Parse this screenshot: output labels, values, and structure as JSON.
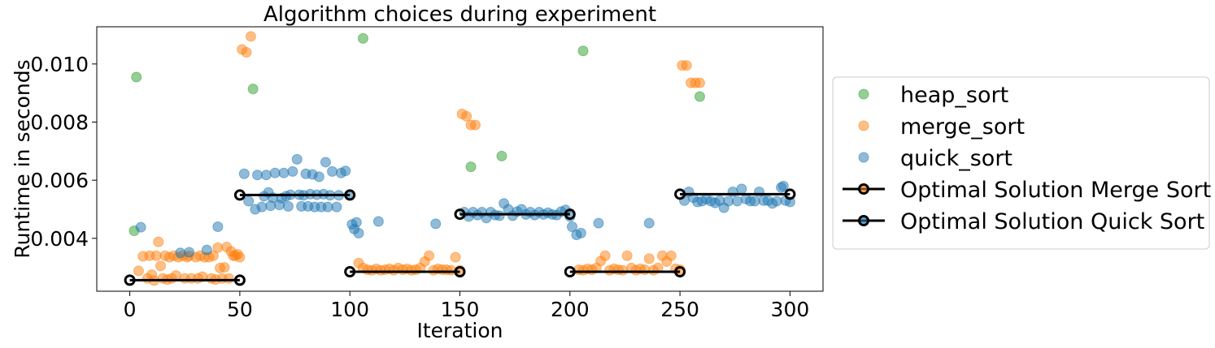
{
  "chart_data": {
    "type": "scatter",
    "title": "Algorithm choices during experiment",
    "xlabel": "Iteration",
    "ylabel": "Runtime in seconds",
    "xlim": [
      -15,
      315
    ],
    "ylim": [
      0.00218,
      0.01128
    ],
    "xticks": [
      0,
      50,
      100,
      150,
      200,
      250,
      300
    ],
    "yticks": [
      0.004,
      0.006,
      0.008,
      0.01
    ],
    "ytick_labels": [
      "0.004",
      "0.006",
      "0.008",
      "0.010"
    ],
    "grid": false,
    "legend_position": "right",
    "series": [
      {
        "name": "heap_sort",
        "kind": "scatter",
        "color": "#2ca02c",
        "points": [
          [
            2,
            0.00426
          ],
          [
            3,
            0.00955
          ],
          [
            56,
            0.00914
          ],
          [
            106,
            0.01088
          ],
          [
            155,
            0.00646
          ],
          [
            169,
            0.00683
          ],
          [
            206,
            0.01045
          ],
          [
            259,
            0.00888
          ]
        ]
      },
      {
        "name": "merge_sort",
        "kind": "scatter",
        "color": "#ff7f0e",
        "points": [
          [
            4,
            0.00288
          ],
          [
            6,
            0.00338
          ],
          [
            8,
            0.00262
          ],
          [
            9,
            0.0034
          ],
          [
            10,
            0.00275
          ],
          [
            11,
            0.00255
          ],
          [
            12,
            0.0034
          ],
          [
            13,
            0.00388
          ],
          [
            14,
            0.00305
          ],
          [
            15,
            0.00262
          ],
          [
            16,
            0.0034
          ],
          [
            17,
            0.00258
          ],
          [
            18,
            0.00335
          ],
          [
            19,
            0.00262
          ],
          [
            20,
            0.0034
          ],
          [
            21,
            0.00272
          ],
          [
            22,
            0.00335
          ],
          [
            24,
            0.0034
          ],
          [
            25,
            0.00262
          ],
          [
            26,
            0.00335
          ],
          [
            27,
            0.0034
          ],
          [
            28,
            0.00262
          ],
          [
            30,
            0.00335
          ],
          [
            31,
            0.00262
          ],
          [
            32,
            0.0034
          ],
          [
            33,
            0.00268
          ],
          [
            34,
            0.00335
          ],
          [
            36,
            0.00335
          ],
          [
            37,
            0.00262
          ],
          [
            38,
            0.0034
          ],
          [
            39,
            0.00258
          ],
          [
            40,
            0.00368
          ],
          [
            41,
            0.00298
          ],
          [
            42,
            0.00262
          ],
          [
            43,
            0.003
          ],
          [
            44,
            0.0037
          ],
          [
            45,
            0.00262
          ],
          [
            46,
            0.00355
          ],
          [
            47,
            0.0034
          ],
          [
            48,
            0.0034
          ],
          [
            49,
            0.00345
          ],
          [
            50,
            0.00335
          ],
          [
            51,
            0.0105
          ],
          [
            53,
            0.0104
          ],
          [
            55,
            0.01095
          ],
          [
            104,
            0.00315
          ],
          [
            106,
            0.00298
          ],
          [
            108,
            0.00292
          ],
          [
            110,
            0.0029
          ],
          [
            112,
            0.00295
          ],
          [
            114,
            0.0029
          ],
          [
            116,
            0.00292
          ],
          [
            118,
            0.00295
          ],
          [
            120,
            0.0029
          ],
          [
            122,
            0.00298
          ],
          [
            124,
            0.00292
          ],
          [
            126,
            0.00295
          ],
          [
            128,
            0.0029
          ],
          [
            130,
            0.00292
          ],
          [
            132,
            0.00298
          ],
          [
            134,
            0.0032
          ],
          [
            136,
            0.0034
          ],
          [
            138,
            0.0029
          ],
          [
            140,
            0.00295
          ],
          [
            142,
            0.00292
          ],
          [
            144,
            0.00292
          ],
          [
            146,
            0.0029
          ],
          [
            148,
            0.00335
          ],
          [
            150,
            0.0029
          ],
          [
            151,
            0.00828
          ],
          [
            153,
            0.0082
          ],
          [
            155,
            0.0079
          ],
          [
            157,
            0.0079
          ],
          [
            204,
            0.00292
          ],
          [
            206,
            0.0029
          ],
          [
            208,
            0.00295
          ],
          [
            210,
            0.00292
          ],
          [
            212,
            0.00298
          ],
          [
            214,
            0.00322
          ],
          [
            216,
            0.0034
          ],
          [
            218,
            0.0029
          ],
          [
            220,
            0.00295
          ],
          [
            222,
            0.00292
          ],
          [
            224,
            0.0029
          ],
          [
            226,
            0.0034
          ],
          [
            228,
            0.00298
          ],
          [
            230,
            0.0029
          ],
          [
            232,
            0.00295
          ],
          [
            234,
            0.00292
          ],
          [
            236,
            0.0033
          ],
          [
            238,
            0.0029
          ],
          [
            240,
            0.00298
          ],
          [
            242,
            0.0034
          ],
          [
            244,
            0.0032
          ],
          [
            246,
            0.0034
          ],
          [
            248,
            0.00295
          ],
          [
            250,
            0.00292
          ],
          [
            251,
            0.00995
          ],
          [
            253,
            0.00995
          ],
          [
            255,
            0.00935
          ],
          [
            257,
            0.00935
          ],
          [
            259,
            0.00935
          ]
        ]
      },
      {
        "name": "quick_sort",
        "kind": "scatter",
        "color": "#1f77b4",
        "points": [
          [
            5,
            0.00438
          ],
          [
            23,
            0.0035
          ],
          [
            27,
            0.00352
          ],
          [
            35,
            0.0036
          ],
          [
            40,
            0.0044
          ],
          [
            52,
            0.00622
          ],
          [
            54,
            0.00528
          ],
          [
            57,
            0.005
          ],
          [
            58,
            0.00618
          ],
          [
            60,
            0.00508
          ],
          [
            61,
            0.00545
          ],
          [
            62,
            0.00618
          ],
          [
            63,
            0.00558
          ],
          [
            64,
            0.00512
          ],
          [
            65,
            0.0054
          ],
          [
            66,
            0.00625
          ],
          [
            68,
            0.00515
          ],
          [
            69,
            0.00538
          ],
          [
            70,
            0.00625
          ],
          [
            71,
            0.00545
          ],
          [
            72,
            0.0051
          ],
          [
            73,
            0.0055
          ],
          [
            74,
            0.0063
          ],
          [
            76,
            0.00672
          ],
          [
            77,
            0.0055
          ],
          [
            78,
            0.0051
          ],
          [
            79,
            0.00548
          ],
          [
            80,
            0.00622
          ],
          [
            81,
            0.0051
          ],
          [
            82,
            0.00552
          ],
          [
            83,
            0.0062
          ],
          [
            84,
            0.00508
          ],
          [
            85,
            0.0055
          ],
          [
            86,
            0.00612
          ],
          [
            87,
            0.00508
          ],
          [
            88,
            0.00552
          ],
          [
            89,
            0.00662
          ],
          [
            90,
            0.00508
          ],
          [
            91,
            0.00548
          ],
          [
            92,
            0.0063
          ],
          [
            94,
            0.00508
          ],
          [
            95,
            0.00548
          ],
          [
            96,
            0.00625
          ],
          [
            98,
            0.00632
          ],
          [
            100,
            0.0055
          ],
          [
            101,
            0.00448
          ],
          [
            102,
            0.00432
          ],
          [
            103,
            0.00455
          ],
          [
            104,
            0.00418
          ],
          [
            113,
            0.00458
          ],
          [
            139,
            0.0045
          ],
          [
            152,
            0.0049
          ],
          [
            154,
            0.00475
          ],
          [
            156,
            0.0049
          ],
          [
            158,
            0.0048
          ],
          [
            160,
            0.0049
          ],
          [
            162,
            0.0047
          ],
          [
            164,
            0.0049
          ],
          [
            166,
            0.0048
          ],
          [
            168,
            0.00478
          ],
          [
            170,
            0.0052
          ],
          [
            172,
            0.005
          ],
          [
            174,
            0.00478
          ],
          [
            176,
            0.00492
          ],
          [
            178,
            0.005
          ],
          [
            180,
            0.00482
          ],
          [
            182,
            0.0049
          ],
          [
            184,
            0.0048
          ],
          [
            186,
            0.0049
          ],
          [
            188,
            0.00482
          ],
          [
            190,
            0.00488
          ],
          [
            192,
            0.00482
          ],
          [
            194,
            0.0048
          ],
          [
            196,
            0.00492
          ],
          [
            198,
            0.00498
          ],
          [
            200,
            0.00475
          ],
          [
            201,
            0.0044
          ],
          [
            203,
            0.00412
          ],
          [
            205,
            0.00418
          ],
          [
            213,
            0.00452
          ],
          [
            236,
            0.00452
          ],
          [
            252,
            0.0053
          ],
          [
            254,
            0.0056
          ],
          [
            256,
            0.0054
          ],
          [
            258,
            0.00525
          ],
          [
            260,
            0.00528
          ],
          [
            262,
            0.00535
          ],
          [
            264,
            0.00528
          ],
          [
            266,
            0.00522
          ],
          [
            268,
            0.0053
          ],
          [
            270,
            0.00505
          ],
          [
            272,
            0.00528
          ],
          [
            274,
            0.0056
          ],
          [
            276,
            0.00528
          ],
          [
            278,
            0.0057
          ],
          [
            280,
            0.00535
          ],
          [
            282,
            0.00528
          ],
          [
            284,
            0.00528
          ],
          [
            286,
            0.0056
          ],
          [
            288,
            0.0053
          ],
          [
            290,
            0.0053
          ],
          [
            292,
            0.0052
          ],
          [
            294,
            0.00528
          ],
          [
            296,
            0.00575
          ],
          [
            297,
            0.0058
          ],
          [
            298,
            0.0053
          ],
          [
            300,
            0.00525
          ]
        ]
      }
    ],
    "lines": [
      {
        "name": "Optimal Solution Merge Sort",
        "color": "#000000",
        "segments": [
          [
            [
              0,
              0.00256
            ],
            [
              50,
              0.00256
            ]
          ],
          [
            [
              100,
              0.00285
            ],
            [
              150,
              0.00285
            ]
          ],
          [
            [
              200,
              0.00285
            ],
            [
              250,
              0.00285
            ]
          ]
        ]
      },
      {
        "name": "Optimal Solution Quick Sort",
        "color": "#000000",
        "segments": [
          [
            [
              50,
              0.00549
            ],
            [
              100,
              0.00549
            ]
          ],
          [
            [
              150,
              0.00483
            ],
            [
              200,
              0.00483
            ]
          ],
          [
            [
              250,
              0.00552
            ],
            [
              300,
              0.00552
            ]
          ]
        ]
      }
    ]
  }
}
